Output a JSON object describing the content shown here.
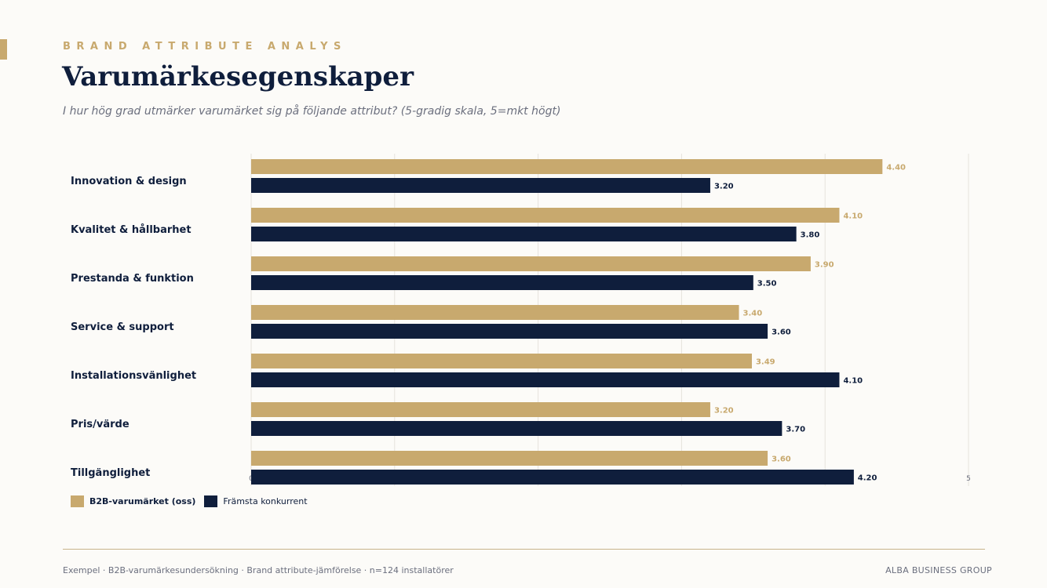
{
  "header": {
    "eyebrow": "BRAND ATTRIBUTE ANALYS",
    "title": "Varumärkesegenskaper",
    "subtitle": "I hur hög grad utmärker varumärket sig på följande attribut? (5-gradig skala, 5=mkt högt)"
  },
  "chart_data": {
    "type": "bar",
    "orientation": "horizontal",
    "categories": [
      "Innovation & design",
      "Kvalitet & hållbarhet",
      "Prestanda & funktion",
      "Service & support",
      "Installationsvänlighet",
      "Pris/värde",
      "Tillgänglighet"
    ],
    "series": [
      {
        "name": "B2B-varumärket (oss)",
        "color": "#c8a96e",
        "values": [
          4.4,
          4.1,
          3.9,
          3.4,
          3.49,
          3.2,
          3.6
        ]
      },
      {
        "name": "Främsta konkurrent",
        "color": "#0f1e3c",
        "values": [
          3.2,
          3.8,
          3.5,
          3.6,
          4.1,
          3.7,
          4.2
        ]
      }
    ],
    "xlim": [
      0,
      5
    ],
    "x_tick_labels": [
      "0",
      "5"
    ],
    "grid": true,
    "legend_position": "bottom-left"
  },
  "legend": {
    "ours_label": "B2B-varumärket (oss)",
    "competitor_label": "Främsta konkurrent"
  },
  "footer": {
    "note": "Exempel · B2B-varumärkesundersökning · Brand attribute-jämförelse · n=124 installatörer",
    "brand": "ALBA BUSINESS GROUP"
  }
}
